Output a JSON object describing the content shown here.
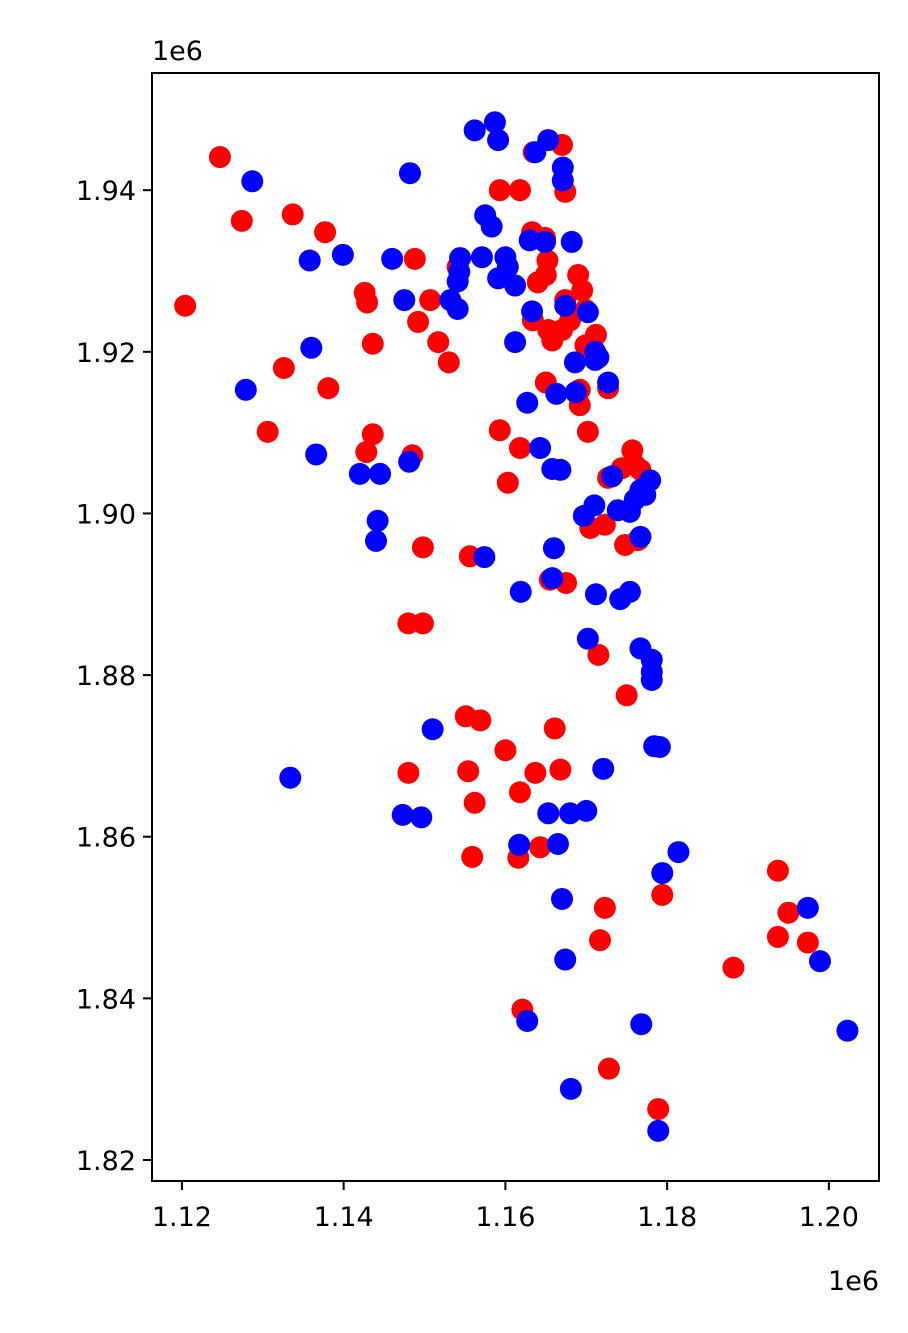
{
  "chart_data": {
    "type": "scatter",
    "x_offset_label": "1e6",
    "y_offset_label": "1e6",
    "xlim": [
      1.1163,
      1.2062
    ],
    "ylim": [
      1.8174,
      1.9545
    ],
    "xticks": [
      1.12,
      1.14,
      1.16,
      1.18,
      {
        "value": 1.2,
        "label": "1.20"
      }
    ],
    "yticks": [
      1.82,
      1.84,
      1.86,
      1.88,
      {
        "value": 1.9,
        "label": "1.90"
      },
      1.92,
      1.94
    ],
    "grid": false,
    "series": [
      {
        "color": "#ff0000",
        "x": [
          1.1247,
          1.1274,
          1.1337,
          1.1377,
          1.1204,
          1.1326,
          1.1381,
          1.1306,
          1.1426,
          1.1429,
          1.1436,
          1.1436,
          1.1428,
          1.1488,
          1.1485,
          1.1498,
          1.148,
          1.1498,
          1.1492,
          1.1507,
          1.1517,
          1.153,
          1.1541,
          1.1556,
          1.1593,
          1.1618,
          1.1635,
          1.167,
          1.1674,
          1.1633,
          1.1649,
          1.1652,
          1.165,
          1.164,
          1.1634,
          1.1653,
          1.1658,
          1.165,
          1.167,
          1.169,
          1.1695,
          1.1699,
          1.1692,
          1.1692,
          1.1702,
          1.1593,
          1.1603,
          1.1618,
          1.1727,
          1.1744,
          1.1757,
          1.176,
          1.1767,
          1.1705,
          1.1723,
          1.1748,
          1.1764,
          1.1675,
          1.1715,
          1.175,
          1.1655,
          1.1551,
          1.1569,
          1.16,
          1.1661,
          1.1637,
          1.1668,
          1.148,
          1.1554,
          1.1562,
          1.1618,
          1.1559,
          1.1616,
          1.1643,
          1.1723,
          1.1717,
          1.1794,
          1.1882,
          1.1937,
          1.1937,
          1.195,
          1.1974,
          1.1621,
          1.1728,
          1.1789,
          1.1712,
          1.1727,
          1.168,
          1.1674,
          1.1699
        ],
        "values": [
          1.9441,
          1.9362,
          1.937,
          1.9348,
          1.9257,
          1.918,
          1.9155,
          1.9101,
          1.9273,
          1.9261,
          1.921,
          1.9098,
          1.9076,
          1.9315,
          1.9072,
          1.8958,
          1.8864,
          1.8864,
          1.9237,
          1.9264,
          1.9212,
          1.9187,
          1.9305,
          1.8947,
          1.94,
          1.94,
          1.9447,
          1.9456,
          1.9398,
          1.9348,
          1.9341,
          1.9313,
          1.9295,
          1.9286,
          1.9239,
          1.9227,
          1.9214,
          1.9162,
          1.9227,
          1.9295,
          1.9276,
          1.9252,
          1.9134,
          1.9153,
          1.9101,
          1.9103,
          1.9038,
          1.9081,
          1.9044,
          1.9056,
          1.9078,
          1.906,
          1.9054,
          1.8982,
          1.8986,
          1.8961,
          1.8967,
          1.8914,
          1.8825,
          1.8775,
          1.8918,
          1.8749,
          1.8744,
          1.8707,
          1.8734,
          1.8679,
          1.8683,
          1.8679,
          1.8681,
          1.8642,
          1.8655,
          1.8575,
          1.8574,
          1.8587,
          1.8512,
          1.8472,
          1.8528,
          1.8438,
          1.8476,
          1.8558,
          1.8506,
          1.8469,
          1.8386,
          1.8313,
          1.8263,
          1.9221,
          1.9155,
          1.9239,
          1.9264,
          1.9208
        ]
      },
      {
        "color": "#0000ff",
        "x": [
          1.1287,
          1.1482,
          1.1562,
          1.1587,
          1.1591,
          1.1653,
          1.1637,
          1.1671,
          1.1671,
          1.1575,
          1.1583,
          1.1358,
          1.1399,
          1.146,
          1.1544,
          1.1543,
          1.1541,
          1.1571,
          1.16,
          1.1603,
          1.1591,
          1.1612,
          1.163,
          1.1649,
          1.1682,
          1.1475,
          1.1532,
          1.1541,
          1.1633,
          1.1674,
          1.1702,
          1.1612,
          1.136,
          1.1279,
          1.1366,
          1.1711,
          1.1686,
          1.1711,
          1.1715,
          1.1727,
          1.1663,
          1.1687,
          1.1627,
          1.1643,
          1.1658,
          1.1668,
          1.1481,
          1.142,
          1.1445,
          1.1442,
          1.144,
          1.166,
          1.1574,
          1.1658,
          1.1619,
          1.1712,
          1.1742,
          1.1754,
          1.1702,
          1.1767,
          1.1781,
          1.1781,
          1.1781,
          1.1784,
          1.1791,
          1.151,
          1.1334,
          1.1473,
          1.1496,
          1.1653,
          1.168,
          1.17,
          1.1721,
          1.1617,
          1.1665,
          1.1814,
          1.1794,
          1.167,
          1.1674,
          1.1974,
          1.1989,
          1.2023,
          1.1627,
          1.1768,
          1.1681,
          1.1789,
          1.1767,
          1.1754,
          1.1739,
          1.1767,
          1.1779,
          1.1773,
          1.1697,
          1.171,
          1.1732,
          1.176
        ],
        "values": [
          1.9411,
          1.9421,
          1.9474,
          1.9484,
          1.9462,
          1.9462,
          1.9447,
          1.9428,
          1.9412,
          1.9369,
          1.9355,
          1.9313,
          1.932,
          1.9315,
          1.9316,
          1.9299,
          1.9287,
          1.9317,
          1.9317,
          1.9305,
          1.9291,
          1.9282,
          1.9338,
          1.9336,
          1.9336,
          1.9264,
          1.9264,
          1.9253,
          1.925,
          1.9257,
          1.9249,
          1.9212,
          1.9205,
          1.9153,
          1.9073,
          1.92,
          1.9187,
          1.919,
          1.9193,
          1.9162,
          1.9148,
          1.915,
          1.9137,
          1.9081,
          1.9055,
          1.9054,
          1.9064,
          1.9049,
          1.9049,
          1.8991,
          1.8966,
          1.8957,
          1.8946,
          1.892,
          1.8903,
          1.89,
          1.8894,
          1.8903,
          1.8845,
          1.8833,
          1.8819,
          1.8804,
          1.8794,
          1.8712,
          1.8711,
          1.8733,
          1.8673,
          1.8627,
          1.8624,
          1.8629,
          1.8629,
          1.8632,
          1.8684,
          1.859,
          1.8591,
          1.8581,
          1.8555,
          1.8523,
          1.8448,
          1.8512,
          1.8446,
          1.836,
          1.8372,
          1.8368,
          1.8288,
          1.8236,
          1.8971,
          1.9002,
          1.9004,
          1.9029,
          1.9041,
          1.9023,
          1.8997,
          1.901,
          1.9046,
          1.9017
        ]
      }
    ]
  }
}
